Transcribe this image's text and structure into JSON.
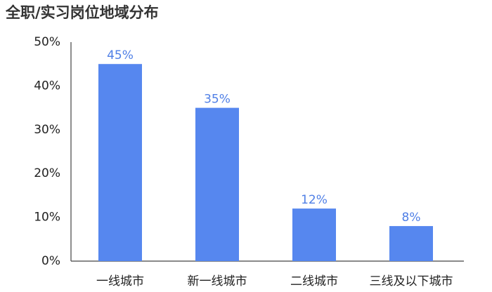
{
  "chart_data": {
    "type": "bar",
    "title": "全职/实习岗位地域分布",
    "categories": [
      "一线城市",
      "新一线城市",
      "二线城市",
      "三线及以下城市"
    ],
    "values": [
      45,
      35,
      12,
      8
    ],
    "value_labels": [
      "45%",
      "35%",
      "12%",
      "8%"
    ],
    "color": "#5687ef",
    "ylim": [
      0,
      50
    ],
    "yticks": [
      {
        "value": 0,
        "label": "0%"
      },
      {
        "value": 10,
        "label": "10%"
      },
      {
        "value": 20,
        "label": "20%"
      },
      {
        "value": 30,
        "label": "30%"
      },
      {
        "value": 40,
        "label": "40%"
      },
      {
        "value": 50,
        "label": "50%"
      }
    ],
    "grid": false
  }
}
